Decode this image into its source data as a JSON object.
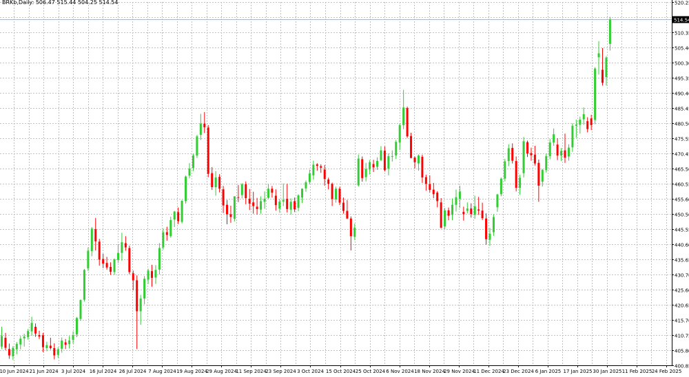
{
  "header": {
    "symbol": "BRKb",
    "timeframe": "Daily",
    "ohlc": [
      "506.47",
      "515.44",
      "504.25",
      "514.54"
    ]
  },
  "colors": {
    "bull": "#32cd32",
    "bear": "#ff0000",
    "grid": "#c0c0c0",
    "frame": "#000000",
    "price_line": "#a9b8c8",
    "price_label_bg": "#000000",
    "price_label_text": "#ffffff"
  },
  "chart_data": {
    "type": "candlestick",
    "timeframe": "Daily",
    "grid": true,
    "ylim": [
      400.85,
      520.25
    ],
    "yticks": [
      "520.25",
      "515.35",
      "510.35",
      "505.40",
      "500.30",
      "495.35",
      "490.40",
      "485.45",
      "480.50",
      "475.55",
      "470.45",
      "465.50",
      "460.55",
      "455.60",
      "450.50",
      "445.55",
      "440.60",
      "435.65",
      "430.70",
      "425.60",
      "420.65",
      "415.70",
      "410.75",
      "405.80",
      "400.85"
    ],
    "xticks": [
      "10 Jun 2024",
      "21 Jun 2024",
      "3 Jul 2024",
      "16 Jul 2024",
      "26 Jul 2024",
      "7 Aug 2024",
      "19 Aug 2024",
      "29 Aug 2024",
      "11 Sep 2024",
      "23 Sep 2024",
      "3 Oct 2024",
      "15 Oct 2024",
      "25 Oct 2024",
      "6 Nov 2024",
      "18 Nov 2024",
      "29 Nov 2024",
      "11 Dec 2024",
      "23 Dec 2024",
      "6 Jan 2025",
      "17 Jan 2025",
      "30 Jan 2025",
      "11 Feb 2025",
      "24 Feb 2025"
    ],
    "last_price": "514.54",
    "candles": [
      [
        407.0,
        413.5,
        406.2,
        410.5
      ],
      [
        409.9,
        411.5,
        405.8,
        406.6
      ],
      [
        406.2,
        408.0,
        403.0,
        404.1
      ],
      [
        403.8,
        407.2,
        402.6,
        406.6
      ],
      [
        406.1,
        408.5,
        404.5,
        407.9
      ],
      [
        407.7,
        410.5,
        406.1,
        409.6
      ],
      [
        409.7,
        411.2,
        407.0,
        410.3
      ],
      [
        410.1,
        412.8,
        409.3,
        412.1
      ],
      [
        412.0,
        416.8,
        410.6,
        414.8
      ],
      [
        413.5,
        414.6,
        410.2,
        411.3
      ],
      [
        410.8,
        412.2,
        409.5,
        410.3
      ],
      [
        410.7,
        411.5,
        405.2,
        406.8
      ],
      [
        406.5,
        408.6,
        405.5,
        407.5
      ],
      [
        407.3,
        409.9,
        406.0,
        406.5
      ],
      [
        406.5,
        408.1,
        402.8,
        404.1
      ],
      [
        404.3,
        406.8,
        403.3,
        406.1
      ],
      [
        406.3,
        410.0,
        405.0,
        409.0
      ],
      [
        408.4,
        409.5,
        406.2,
        407.6
      ],
      [
        407.8,
        410.5,
        406.4,
        409.0
      ],
      [
        409.2,
        412.0,
        408.0,
        410.8
      ],
      [
        411.0,
        416.7,
        410.1,
        416.4
      ],
      [
        416.1,
        422.5,
        415.5,
        422.3
      ],
      [
        422.4,
        432.5,
        421.8,
        432.2
      ],
      [
        432.7,
        439.6,
        431.9,
        438.5
      ],
      [
        438.4,
        446.3,
        436.7,
        445.8
      ],
      [
        445.6,
        449.3,
        438.6,
        441.6
      ],
      [
        441.5,
        442.4,
        433.6,
        435.6
      ],
      [
        435.8,
        437.5,
        432.8,
        434.3
      ],
      [
        434.5,
        436.5,
        432.3,
        433.0
      ],
      [
        433.2,
        434.7,
        430.6,
        431.6
      ],
      [
        431.5,
        436.0,
        430.6,
        435.7
      ],
      [
        435.5,
        440.7,
        434.5,
        437.8
      ],
      [
        437.8,
        444.4,
        435.2,
        441.3
      ],
      [
        441.0,
        443.3,
        438.5,
        439.6
      ],
      [
        439.4,
        440.2,
        430.8,
        431.5
      ],
      [
        431.1,
        432.0,
        425.5,
        428.8
      ],
      [
        428.8,
        430.4,
        406.2,
        418.6
      ],
      [
        418.6,
        424.0,
        414.2,
        422.8
      ],
      [
        422.8,
        430.2,
        420.9,
        429.3
      ],
      [
        429.0,
        432.6,
        427.6,
        432.0
      ],
      [
        431.8,
        433.9,
        426.7,
        429.6
      ],
      [
        429.7,
        433.8,
        427.6,
        432.2
      ],
      [
        432.3,
        441.0,
        430.7,
        439.4
      ],
      [
        439.6,
        445.8,
        438.9,
        444.6
      ],
      [
        444.6,
        446.4,
        441.8,
        443.7
      ],
      [
        443.3,
        449.7,
        442.8,
        448.6
      ],
      [
        448.8,
        451.6,
        446.3,
        451.4
      ],
      [
        451.2,
        452.7,
        447.3,
        448.2
      ],
      [
        448.0,
        455.2,
        447.5,
        454.9
      ],
      [
        454.8,
        463.2,
        454.0,
        462.9
      ],
      [
        463.2,
        467.3,
        462.3,
        465.5
      ],
      [
        465.7,
        470.4,
        464.7,
        469.8
      ],
      [
        469.8,
        476.6,
        469.0,
        476.1
      ],
      [
        476.6,
        483.5,
        474.9,
        480.3
      ],
      [
        480.3,
        484.1,
        477.2,
        479.1
      ],
      [
        479.0,
        479.8,
        462.7,
        463.8
      ],
      [
        464.0,
        466.0,
        458.5,
        459.4
      ],
      [
        459.4,
        464.7,
        456.6,
        462.6
      ],
      [
        462.8,
        463.7,
        457.7,
        458.9
      ],
      [
        458.7,
        459.8,
        450.9,
        453.4
      ],
      [
        453.6,
        455.2,
        447.2,
        450.5
      ],
      [
        450.5,
        453.3,
        447.7,
        449.6
      ],
      [
        449.0,
        456.4,
        448.1,
        456.4
      ],
      [
        456.1,
        460.1,
        454.5,
        456.0
      ],
      [
        456.8,
        460.7,
        455.7,
        460.4
      ],
      [
        460.4,
        461.3,
        453.8,
        455.8
      ],
      [
        455.6,
        458.8,
        451.9,
        454.0
      ],
      [
        454.4,
        457.9,
        450.7,
        453.2
      ],
      [
        453.0,
        455.9,
        450.4,
        452.2
      ],
      [
        452.0,
        456.4,
        450.7,
        454.8
      ],
      [
        454.6,
        458.0,
        452.3,
        455.6
      ],
      [
        455.9,
        460.4,
        455.6,
        458.9
      ],
      [
        458.9,
        459.8,
        456.0,
        457.6
      ],
      [
        456.6,
        458.7,
        451.7,
        453.5
      ],
      [
        452.4,
        455.5,
        451.0,
        454.7
      ],
      [
        454.7,
        460.6,
        453.2,
        455.2
      ],
      [
        455.6,
        460.5,
        451.1,
        452.2
      ],
      [
        452.0,
        455.7,
        450.4,
        454.6
      ],
      [
        454.8,
        456.0,
        451.2,
        452.1
      ],
      [
        452.6,
        457.1,
        451.5,
        456.7
      ],
      [
        456.0,
        459.0,
        454.2,
        458.9
      ],
      [
        459.0,
        461.6,
        457.9,
        461.0
      ],
      [
        461.1,
        465.1,
        460.5,
        463.9
      ],
      [
        463.3,
        468.1,
        461.9,
        466.8
      ],
      [
        466.9,
        467.3,
        464.8,
        466.4
      ],
      [
        466.3,
        466.9,
        464.1,
        465.8
      ],
      [
        465.2,
        466.7,
        459.9,
        462.1
      ],
      [
        461.9,
        462.5,
        458.7,
        460.5
      ],
      [
        460.5,
        460.9,
        453.2,
        455.5
      ],
      [
        455.4,
        459.6,
        454.3,
        458.9
      ],
      [
        458.9,
        459.6,
        453.5,
        454.3
      ],
      [
        454.3,
        456.0,
        450.7,
        451.6
      ],
      [
        451.6,
        455.2,
        448.9,
        449.1
      ],
      [
        449.1,
        449.8,
        438.6,
        443.3
      ],
      [
        443.1,
        447.4,
        442.1,
        446.1
      ],
      [
        460.0,
        470.1,
        459.6,
        468.8
      ],
      [
        468.6,
        469.5,
        461.2,
        462.4
      ],
      [
        462.7,
        467.4,
        461.3,
        465.4
      ],
      [
        465.2,
        468.3,
        463.6,
        467.6
      ],
      [
        467.0,
        468.4,
        464.4,
        465.9
      ],
      [
        466.1,
        469.2,
        465.1,
        468.0
      ],
      [
        468.3,
        472.9,
        468.0,
        471.5
      ],
      [
        471.4,
        472.8,
        464.6,
        465.0
      ],
      [
        465.5,
        470.5,
        463.3,
        469.6
      ],
      [
        469.6,
        471.5,
        467.8,
        469.6
      ],
      [
        469.8,
        474.9,
        468.7,
        474.3
      ],
      [
        474.1,
        480.4,
        471.6,
        479.8
      ],
      [
        479.8,
        491.4,
        478.5,
        485.6
      ],
      [
        485.4,
        485.9,
        475.6,
        476.1
      ],
      [
        476.2,
        477.3,
        468.9,
        469.0
      ],
      [
        469.1,
        469.5,
        465.6,
        467.6
      ],
      [
        467.2,
        470.2,
        464.8,
        469.8
      ],
      [
        469.4,
        470.1,
        460.8,
        462.6
      ],
      [
        462.7,
        463.5,
        458.3,
        460.5
      ],
      [
        460.4,
        463.3,
        457.7,
        458.5
      ],
      [
        458.6,
        460.8,
        455.8,
        457.1
      ],
      [
        457.6,
        458.1,
        452.8,
        454.8
      ],
      [
        454.4,
        455.8,
        445.8,
        446.1
      ],
      [
        446.5,
        452.6,
        445.7,
        451.8
      ],
      [
        451.8,
        452.7,
        448.5,
        450.0
      ],
      [
        450.3,
        455.7,
        448.5,
        453.6
      ],
      [
        453.6,
        458.6,
        451.4,
        456.1
      ],
      [
        455.6,
        459.9,
        452.6,
        458.0
      ],
      [
        451.3,
        453.0,
        448.4,
        450.5
      ],
      [
        451.6,
        454.4,
        450.8,
        452.4
      ],
      [
        452.4,
        454.1,
        449.4,
        450.6
      ],
      [
        450.3,
        456.6,
        449.0,
        453.1
      ],
      [
        452.1,
        456.2,
        450.3,
        451.7
      ],
      [
        451.7,
        454.3,
        448.6,
        449.2
      ],
      [
        449.1,
        450.8,
        440.5,
        442.3
      ],
      [
        442.1,
        446.0,
        440.1,
        444.1
      ],
      [
        444.6,
        450.5,
        443.4,
        449.6
      ],
      [
        452.8,
        457.2,
        451.3,
        457.0
      ],
      [
        457.1,
        462.6,
        456.4,
        462.2
      ],
      [
        462.2,
        468.7,
        461.3,
        467.9
      ],
      [
        468.0,
        473.5,
        466.3,
        472.2
      ],
      [
        472.3,
        473.8,
        467.2,
        468.1
      ],
      [
        468.0,
        469.5,
        458.0,
        459.2
      ],
      [
        459.2,
        463.5,
        456.9,
        462.5
      ],
      [
        464.0,
        475.9,
        462.6,
        474.5
      ],
      [
        474.2,
        474.7,
        469.3,
        470.5
      ],
      [
        470.6,
        472.4,
        468.1,
        469.9
      ],
      [
        470.1,
        473.0,
        466.5,
        467.2
      ],
      [
        467.4,
        468.5,
        454.6,
        459.9
      ],
      [
        461.2,
        465.4,
        459.6,
        465.1
      ],
      [
        465.0,
        470.5,
        464.2,
        469.6
      ],
      [
        469.6,
        475.2,
        468.6,
        474.1
      ],
      [
        474.1,
        478.7,
        473.0,
        476.8
      ],
      [
        473.4,
        475.5,
        468.3,
        469.8
      ],
      [
        469.8,
        472.3,
        468.0,
        471.3
      ],
      [
        471.5,
        477.0,
        467.4,
        469.1
      ],
      [
        469.5,
        473.5,
        468.1,
        472.4
      ],
      [
        472.5,
        480.4,
        471.0,
        479.6
      ],
      [
        479.6,
        481.6,
        475.6,
        480.0
      ],
      [
        479.9,
        482.6,
        477.0,
        481.6
      ],
      [
        481.7,
        485.6,
        479.9,
        483.4
      ],
      [
        481.1,
        482.4,
        477.4,
        478.5
      ],
      [
        482.0,
        483.2,
        478.2,
        479.8
      ],
      [
        481.5,
        498.8,
        480.1,
        498.4
      ],
      [
        502.1,
        507.4,
        496.4,
        503.4
      ],
      [
        498.0,
        505.1,
        492.8,
        493.7
      ],
      [
        495.6,
        502.5,
        492.8,
        502.0
      ],
      [
        506.5,
        515.4,
        504.3,
        514.5
      ]
    ]
  }
}
